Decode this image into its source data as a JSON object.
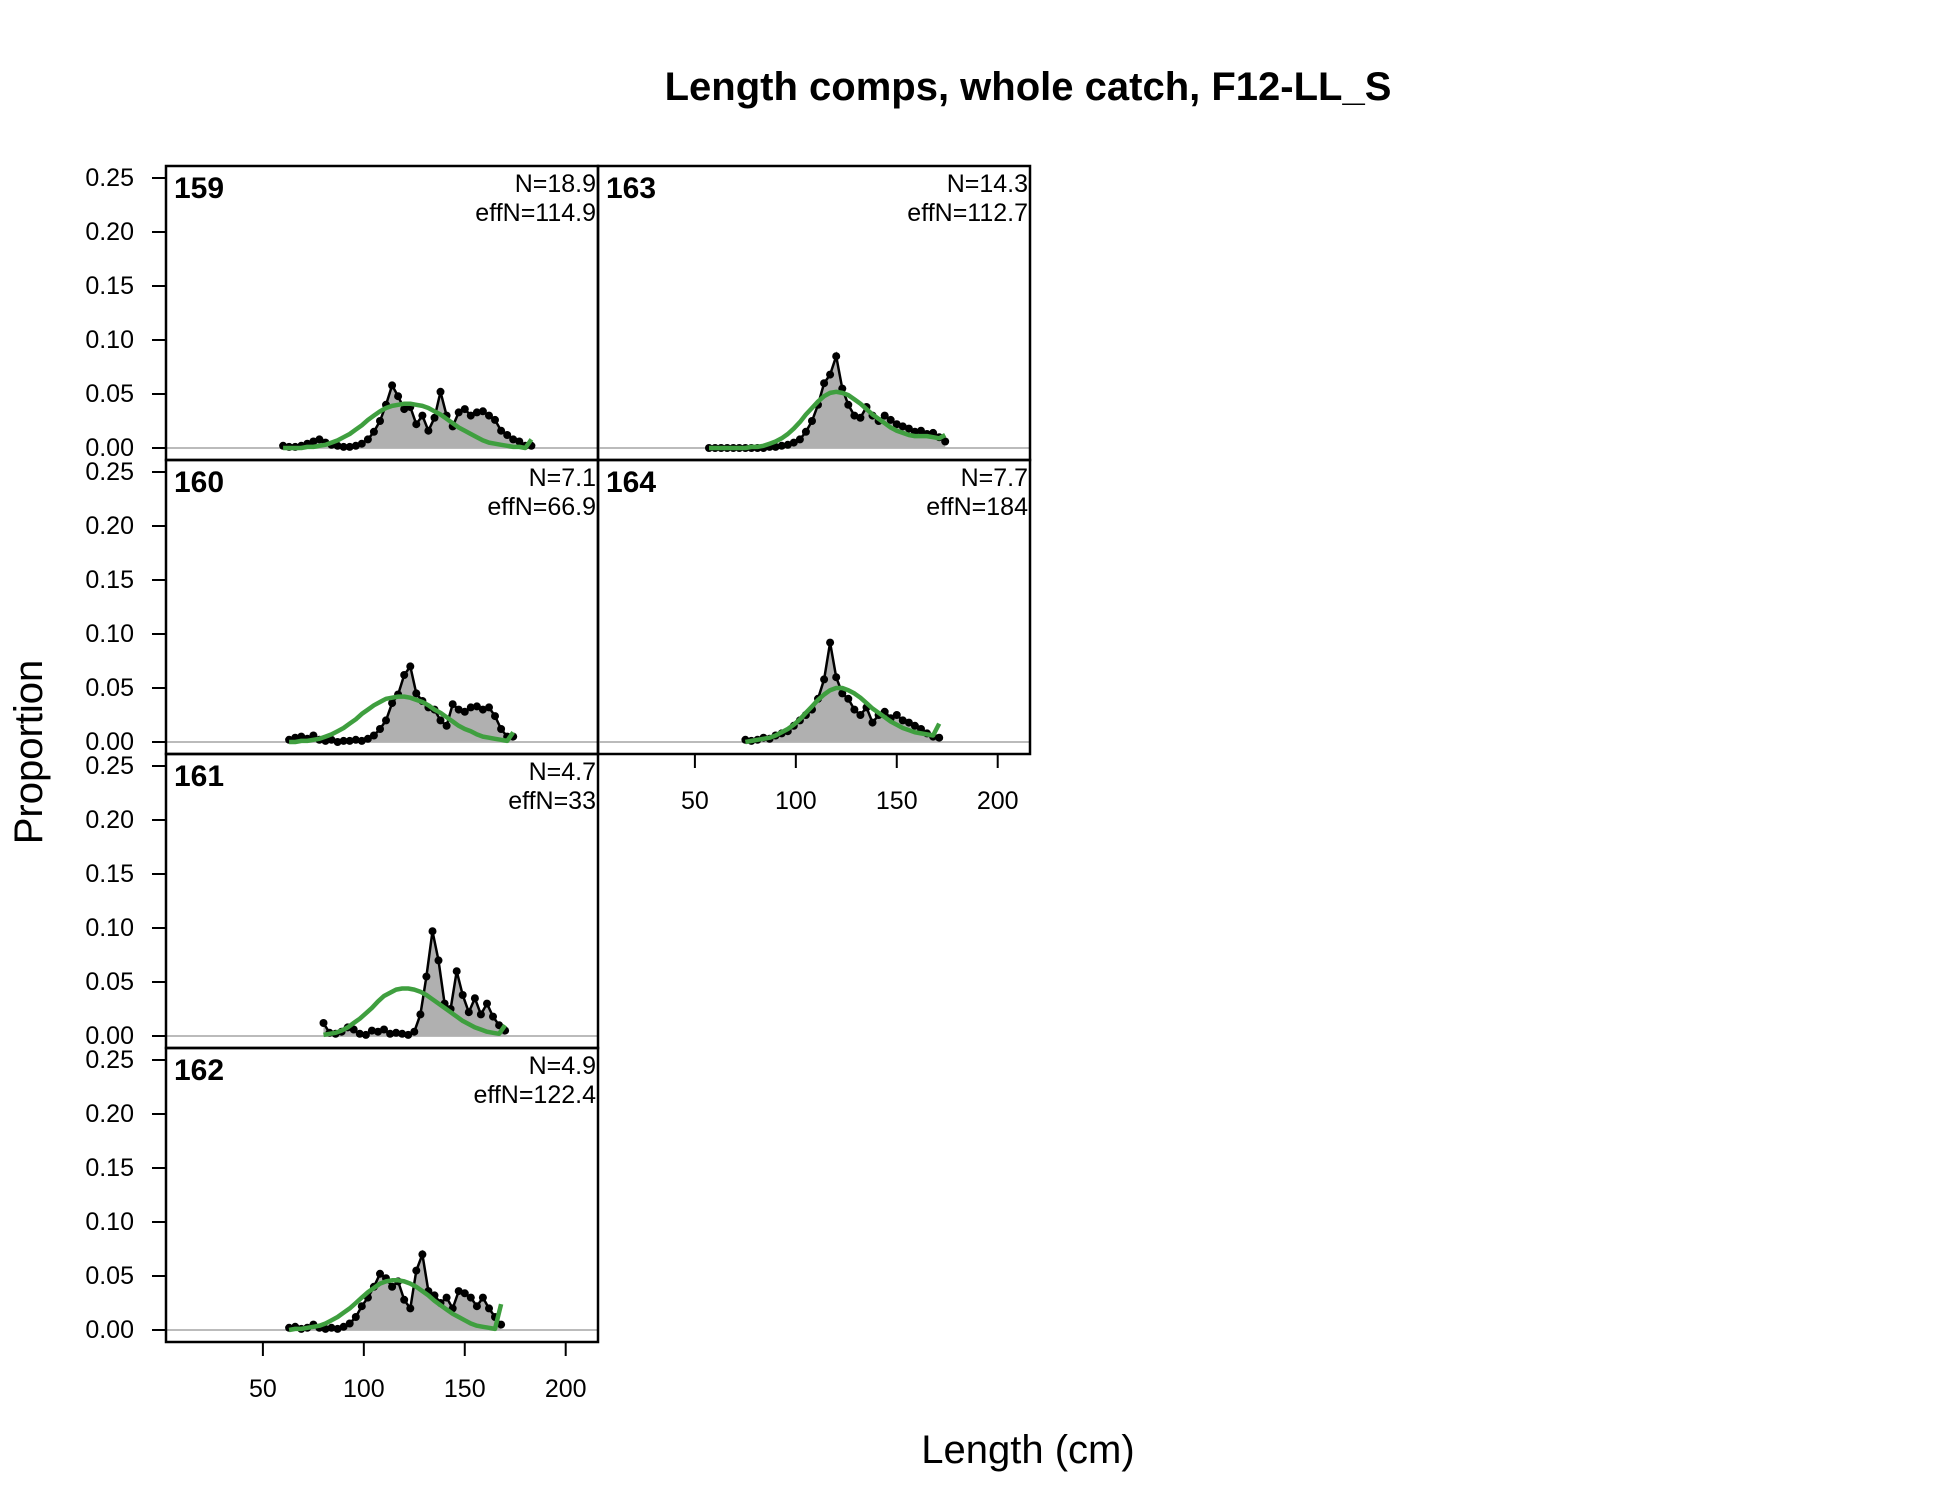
{
  "chart_data": {
    "type": "area",
    "title": "Length comps, whole catch, F12-LL_S",
    "xlabel": "Length (cm)",
    "ylabel": "Proportion",
    "xlim": [
      2,
      216
    ],
    "ylim": [
      0,
      0.25
    ],
    "xticks": [
      50,
      100,
      150,
      200
    ],
    "yticks": [
      "0.00",
      "0.05",
      "0.10",
      "0.15",
      "0.20",
      "0.25"
    ],
    "colors": {
      "observed_fill": "#b0b0b0",
      "observed_line": "#000000",
      "expected_line": "#3f9f3f",
      "zero_line": "#bbbbbb"
    },
    "panels": [
      {
        "id": "159",
        "n_label": "N=18.9",
        "effn_label": "effN=114.9",
        "x": [
          60,
          63,
          66,
          69,
          72,
          75,
          78,
          81,
          84,
          87,
          90,
          93,
          96,
          99,
          102,
          105,
          108,
          111,
          114,
          117,
          120,
          123,
          126,
          129,
          132,
          135,
          138,
          141,
          144,
          147,
          150,
          153,
          156,
          159,
          162,
          165,
          168,
          171,
          174,
          177,
          180,
          183
        ],
        "observed": [
          0.002,
          0.001,
          0.001,
          0.002,
          0.004,
          0.006,
          0.008,
          0.005,
          0.003,
          0.002,
          0.001,
          0.001,
          0.002,
          0.004,
          0.008,
          0.015,
          0.025,
          0.04,
          0.058,
          0.048,
          0.036,
          0.038,
          0.022,
          0.03,
          0.016,
          0.028,
          0.052,
          0.03,
          0.02,
          0.033,
          0.036,
          0.03,
          0.033,
          0.034,
          0.03,
          0.026,
          0.016,
          0.012,
          0.008,
          0.006,
          0.002,
          0.002
        ],
        "expected": [
          0.0,
          0.0,
          0.0,
          0.0,
          0.001,
          0.001,
          0.002,
          0.003,
          0.005,
          0.007,
          0.01,
          0.013,
          0.017,
          0.021,
          0.026,
          0.03,
          0.034,
          0.037,
          0.039,
          0.04,
          0.041,
          0.041,
          0.04,
          0.039,
          0.037,
          0.034,
          0.031,
          0.027,
          0.023,
          0.019,
          0.016,
          0.013,
          0.01,
          0.007,
          0.005,
          0.004,
          0.003,
          0.002,
          0.001,
          0.001,
          0.0,
          0.008
        ]
      },
      {
        "id": "160",
        "n_label": "N=7.1",
        "effn_label": "effN=66.9",
        "x": [
          63,
          66,
          69,
          72,
          75,
          78,
          81,
          84,
          87,
          90,
          93,
          96,
          99,
          102,
          105,
          108,
          111,
          114,
          117,
          120,
          123,
          126,
          129,
          132,
          135,
          138,
          141,
          144,
          147,
          150,
          153,
          156,
          159,
          162,
          165,
          168,
          171,
          174
        ],
        "observed": [
          0.002,
          0.004,
          0.005,
          0.003,
          0.006,
          0.002,
          0.001,
          0.002,
          0.0,
          0.001,
          0.001,
          0.002,
          0.001,
          0.003,
          0.006,
          0.012,
          0.02,
          0.036,
          0.044,
          0.062,
          0.07,
          0.045,
          0.038,
          0.032,
          0.03,
          0.02,
          0.015,
          0.035,
          0.03,
          0.028,
          0.032,
          0.033,
          0.03,
          0.032,
          0.024,
          0.012,
          0.005,
          0.005
        ],
        "expected": [
          0.0,
          0.0,
          0.001,
          0.001,
          0.002,
          0.003,
          0.005,
          0.007,
          0.01,
          0.013,
          0.017,
          0.021,
          0.026,
          0.03,
          0.034,
          0.037,
          0.04,
          0.041,
          0.042,
          0.042,
          0.041,
          0.039,
          0.037,
          0.034,
          0.03,
          0.027,
          0.023,
          0.019,
          0.015,
          0.012,
          0.01,
          0.007,
          0.005,
          0.004,
          0.003,
          0.002,
          0.001,
          0.009
        ]
      },
      {
        "id": "161",
        "n_label": "N=4.7",
        "effn_label": "effN=33",
        "x": [
          80,
          83,
          86,
          89,
          92,
          95,
          98,
          101,
          104,
          107,
          110,
          113,
          116,
          119,
          122,
          125,
          128,
          131,
          134,
          137,
          140,
          143,
          146,
          149,
          152,
          155,
          158,
          161,
          164,
          167,
          170
        ],
        "observed": [
          0.012,
          0.003,
          0.002,
          0.004,
          0.008,
          0.006,
          0.002,
          0.001,
          0.005,
          0.004,
          0.006,
          0.002,
          0.003,
          0.002,
          0.001,
          0.004,
          0.02,
          0.055,
          0.097,
          0.07,
          0.03,
          0.025,
          0.06,
          0.038,
          0.022,
          0.035,
          0.02,
          0.03,
          0.018,
          0.01,
          0.005
        ],
        "expected": [
          0.001,
          0.002,
          0.003,
          0.005,
          0.008,
          0.012,
          0.016,
          0.021,
          0.026,
          0.032,
          0.037,
          0.04,
          0.043,
          0.044,
          0.044,
          0.043,
          0.041,
          0.038,
          0.034,
          0.03,
          0.026,
          0.022,
          0.018,
          0.014,
          0.011,
          0.008,
          0.006,
          0.004,
          0.003,
          0.002,
          0.01
        ]
      },
      {
        "id": "162",
        "n_label": "N=4.9",
        "effn_label": "effN=122.4",
        "x": [
          63,
          66,
          69,
          72,
          75,
          78,
          81,
          84,
          87,
          90,
          93,
          96,
          99,
          102,
          105,
          108,
          111,
          114,
          117,
          120,
          123,
          126,
          129,
          132,
          135,
          138,
          141,
          144,
          147,
          150,
          153,
          156,
          159,
          162,
          165,
          168
        ],
        "observed": [
          0.002,
          0.003,
          0.001,
          0.002,
          0.005,
          0.002,
          0.001,
          0.002,
          0.001,
          0.003,
          0.006,
          0.012,
          0.022,
          0.03,
          0.04,
          0.052,
          0.048,
          0.04,
          0.045,
          0.028,
          0.02,
          0.055,
          0.07,
          0.036,
          0.032,
          0.025,
          0.03,
          0.02,
          0.036,
          0.034,
          0.03,
          0.022,
          0.03,
          0.02,
          0.012,
          0.005
        ],
        "expected": [
          0.0,
          0.001,
          0.001,
          0.002,
          0.003,
          0.004,
          0.006,
          0.009,
          0.012,
          0.016,
          0.02,
          0.025,
          0.03,
          0.035,
          0.039,
          0.043,
          0.045,
          0.046,
          0.046,
          0.045,
          0.043,
          0.04,
          0.036,
          0.032,
          0.027,
          0.023,
          0.019,
          0.015,
          0.012,
          0.009,
          0.006,
          0.004,
          0.003,
          0.002,
          0.001,
          0.024
        ]
      },
      {
        "id": "163",
        "n_label": "N=14.3",
        "effn_label": "effN=112.7",
        "x": [
          57,
          60,
          63,
          66,
          69,
          72,
          75,
          78,
          81,
          84,
          87,
          90,
          93,
          96,
          99,
          102,
          105,
          108,
          111,
          114,
          117,
          120,
          123,
          126,
          129,
          132,
          135,
          138,
          141,
          144,
          147,
          150,
          153,
          156,
          159,
          162,
          165,
          168,
          171,
          174
        ],
        "observed": [
          0.0,
          0.0,
          0.0,
          0.0,
          0.0,
          0.0,
          0.0,
          0.0,
          0.0,
          0.0,
          0.001,
          0.001,
          0.002,
          0.003,
          0.005,
          0.008,
          0.015,
          0.025,
          0.04,
          0.06,
          0.068,
          0.085,
          0.055,
          0.04,
          0.03,
          0.028,
          0.038,
          0.03,
          0.025,
          0.03,
          0.026,
          0.022,
          0.02,
          0.018,
          0.015,
          0.016,
          0.013,
          0.014,
          0.01,
          0.006
        ],
        "expected": [
          0.0,
          0.0,
          0.0,
          0.0,
          0.0,
          0.0,
          0.0,
          0.001,
          0.001,
          0.002,
          0.004,
          0.006,
          0.009,
          0.013,
          0.018,
          0.024,
          0.031,
          0.037,
          0.043,
          0.048,
          0.051,
          0.052,
          0.051,
          0.049,
          0.045,
          0.041,
          0.036,
          0.031,
          0.027,
          0.023,
          0.019,
          0.016,
          0.014,
          0.012,
          0.011,
          0.011,
          0.011,
          0.01,
          0.009,
          0.012
        ]
      },
      {
        "id": "164",
        "n_label": "N=7.7",
        "effn_label": "effN=184",
        "x": [
          75,
          78,
          81,
          84,
          87,
          90,
          93,
          96,
          99,
          102,
          105,
          108,
          111,
          114,
          117,
          120,
          123,
          126,
          129,
          132,
          135,
          138,
          141,
          144,
          147,
          150,
          153,
          156,
          159,
          162,
          165,
          168,
          171
        ],
        "observed": [
          0.002,
          0.001,
          0.002,
          0.004,
          0.003,
          0.006,
          0.008,
          0.01,
          0.015,
          0.02,
          0.025,
          0.03,
          0.04,
          0.058,
          0.092,
          0.06,
          0.045,
          0.04,
          0.03,
          0.025,
          0.032,
          0.018,
          0.025,
          0.028,
          0.022,
          0.025,
          0.02,
          0.018,
          0.015,
          0.012,
          0.008,
          0.005,
          0.004
        ],
        "expected": [
          0.0,
          0.001,
          0.002,
          0.003,
          0.004,
          0.006,
          0.009,
          0.012,
          0.016,
          0.021,
          0.027,
          0.033,
          0.039,
          0.044,
          0.048,
          0.05,
          0.05,
          0.048,
          0.045,
          0.041,
          0.036,
          0.031,
          0.027,
          0.023,
          0.019,
          0.016,
          0.013,
          0.011,
          0.009,
          0.008,
          0.007,
          0.006,
          0.017
        ]
      }
    ]
  }
}
